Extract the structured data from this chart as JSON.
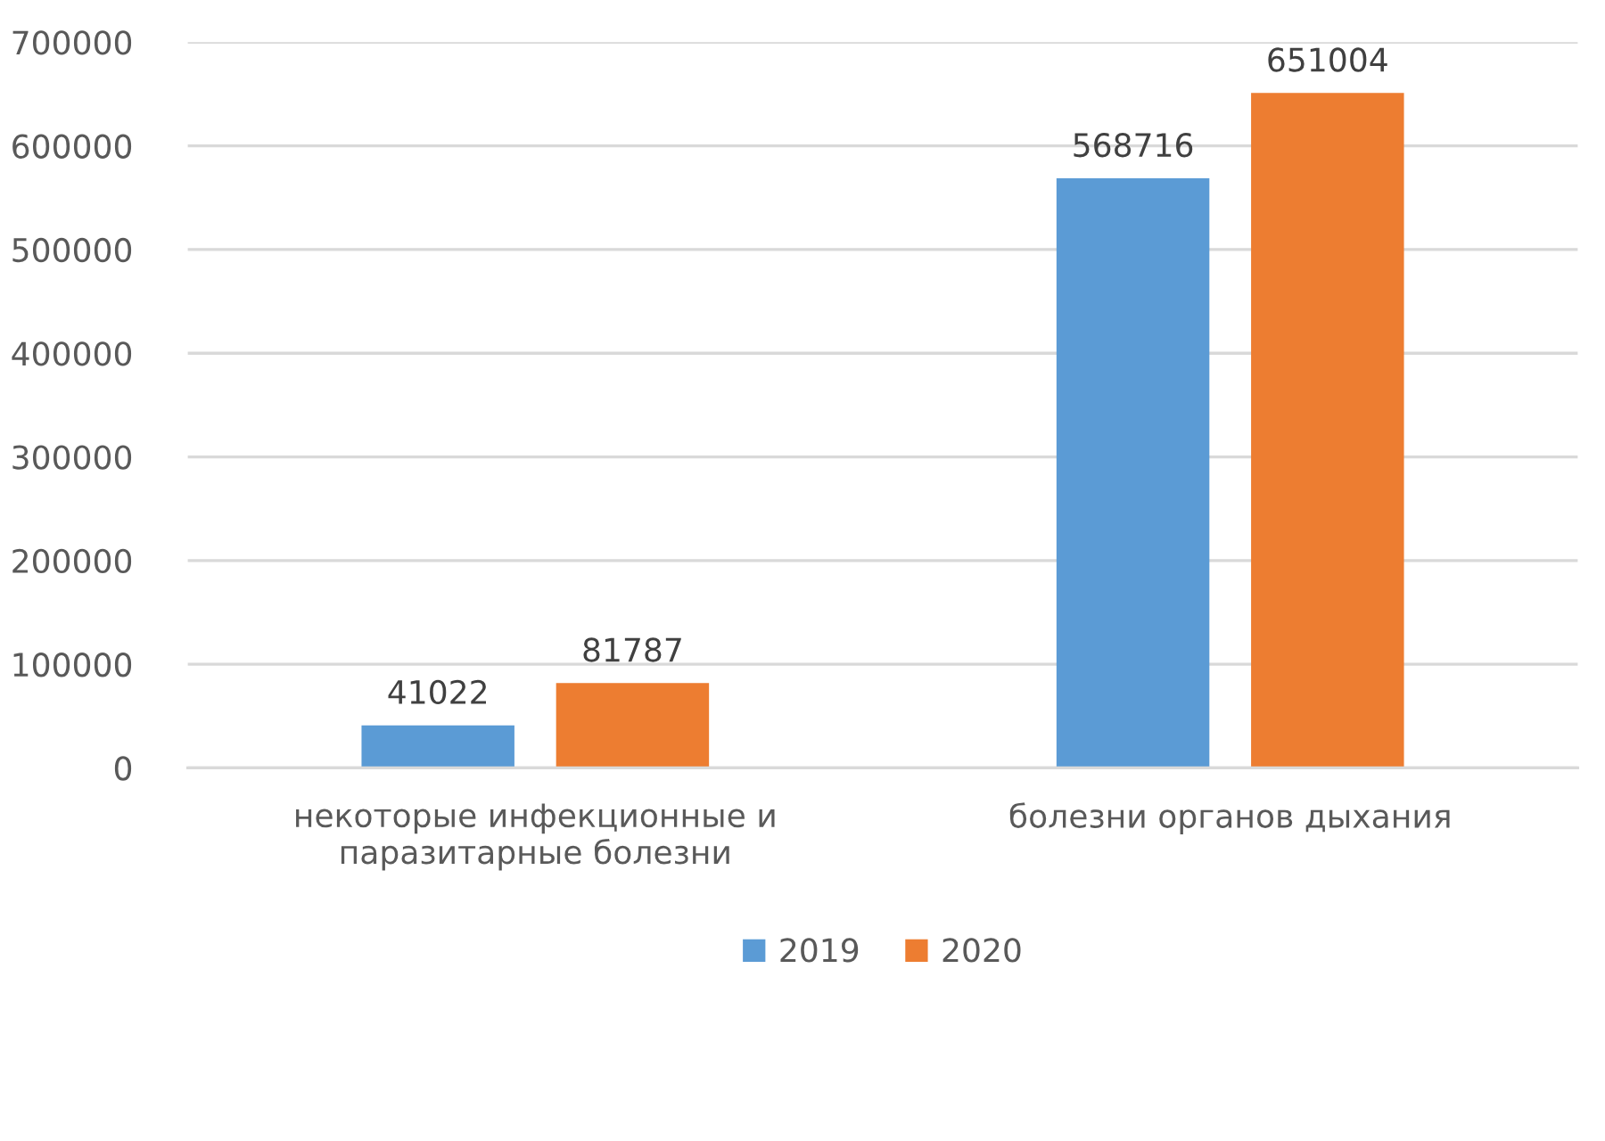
{
  "chart_data": {
    "type": "bar",
    "categories": [
      "некоторые инфекционные и\nпаразитарные болезни",
      "болезни органов дыхания"
    ],
    "series": [
      {
        "name": "2019",
        "color": "#5b9bd5",
        "values": [
          41022,
          568716
        ]
      },
      {
        "name": "2020",
        "color": "#ed7d31",
        "values": [
          81787,
          651004
        ]
      }
    ],
    "ylim": [
      0,
      700000
    ],
    "yticks": [
      0,
      100000,
      200000,
      300000,
      400000,
      500000,
      600000,
      700000
    ],
    "grid": "y",
    "legend": "bottom",
    "data_labels": true
  }
}
